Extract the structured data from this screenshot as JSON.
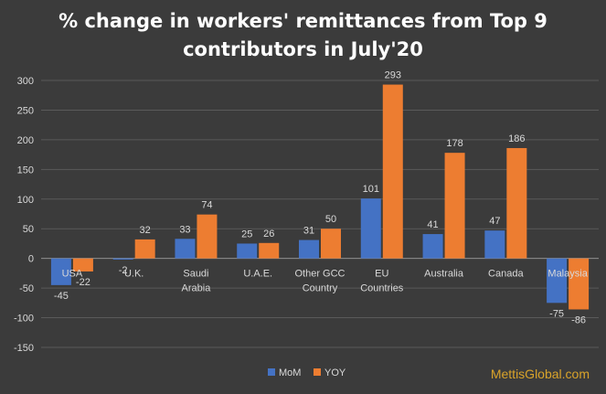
{
  "chart_data": {
    "type": "bar",
    "title_lines": [
      "% change in workers' remittances from Top 9",
      "contributors in July'20"
    ],
    "categories": [
      "USA",
      "U.K.",
      "Saudi Arabia",
      "U.A.E.",
      "Other GCC Country",
      "EU Countries",
      "Australia",
      "Canada",
      "Malaysia"
    ],
    "category_lines": [
      [
        "USA"
      ],
      [
        "U.K."
      ],
      [
        "Saudi",
        "Arabia"
      ],
      [
        "U.A.E."
      ],
      [
        "Other GCC",
        "Country"
      ],
      [
        "EU",
        "Countries"
      ],
      [
        "Australia"
      ],
      [
        "Canada"
      ],
      [
        "Malaysia"
      ]
    ],
    "series": [
      {
        "name": "MoM",
        "color": "#4472c4",
        "values": [
          -45,
          -2,
          33,
          25,
          31,
          101,
          41,
          47,
          -75
        ]
      },
      {
        "name": "YOY",
        "color": "#ed7d31",
        "values": [
          -22,
          32,
          74,
          26,
          50,
          293,
          178,
          186,
          -86
        ]
      }
    ],
    "ylim": [
      -150,
      300
    ],
    "yticks": [
      -150,
      -100,
      -50,
      0,
      50,
      100,
      150,
      200,
      250,
      300
    ],
    "grid": true,
    "legend_position": "bottom-center"
  },
  "watermark": "MettisGlobal.com"
}
